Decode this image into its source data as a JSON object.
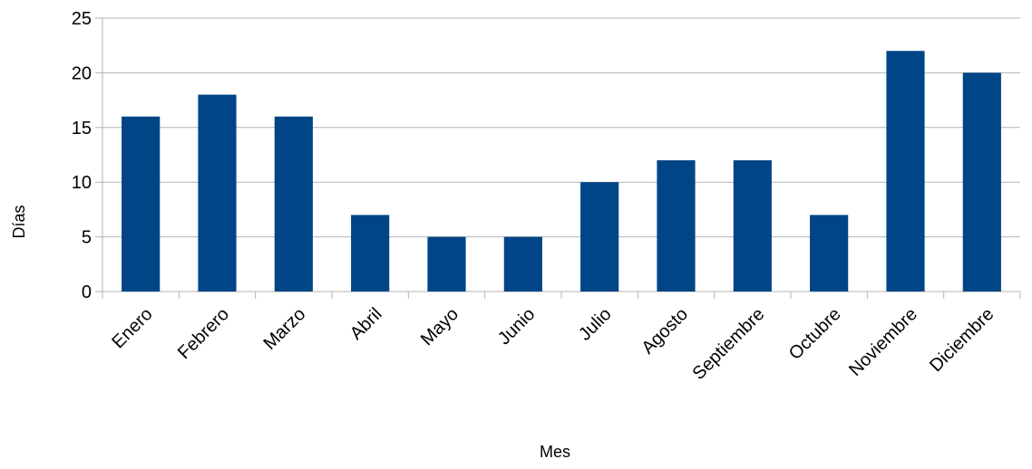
{
  "chart_data": {
    "type": "bar",
    "title": "",
    "xlabel": "Mes",
    "ylabel": "Días",
    "categories": [
      "Enero",
      "Febrero",
      "Marzo",
      "Abril",
      "Mayo",
      "Junio",
      "Julio",
      "Agosto",
      "Septiembre",
      "Octubre",
      "Noviembre",
      "Diciembre"
    ],
    "values": [
      16,
      18,
      16,
      7,
      5,
      5,
      10,
      12,
      12,
      7,
      22,
      20
    ],
    "ylim": [
      0,
      25
    ],
    "yticks": [
      "0",
      "5",
      "10",
      "15",
      "20",
      "25"
    ],
    "grid": true,
    "legend": "none",
    "colors": {
      "bar": "#004586",
      "grid": "#b3b3b3",
      "axis": "#b3b3b3"
    }
  }
}
